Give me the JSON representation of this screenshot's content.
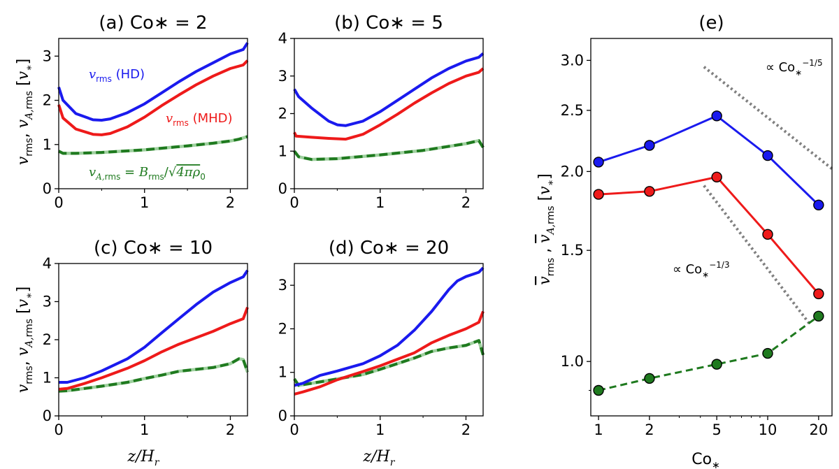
{
  "colors": {
    "hd": "#1a1aee",
    "mhd": "#ee1a1a",
    "va": "#1f7a1f",
    "guide": "#808080"
  },
  "ylabel_left": "v_rms , v_A,rms [v*]",
  "panels": [
    {
      "id": "a",
      "title": "(a) Co∗ = 2",
      "xlim": [
        0,
        2.2
      ],
      "ylim": [
        0,
        3.4
      ],
      "yticks": [
        0,
        1,
        2,
        3
      ],
      "xticks": [
        0,
        1,
        2
      ],
      "annotations": {
        "hd": "v_rms (HD)",
        "mhd": "v_rms (MHD)",
        "va": "v_A,rms = B_rms/√4πρ0"
      },
      "series": {
        "hd": {
          "x": [
            0,
            0.05,
            0.2,
            0.4,
            0.5,
            0.6,
            0.8,
            1.0,
            1.2,
            1.4,
            1.6,
            1.8,
            2.0,
            2.15,
            2.2
          ],
          "y": [
            2.3,
            2.0,
            1.7,
            1.56,
            1.55,
            1.58,
            1.72,
            1.92,
            2.17,
            2.42,
            2.65,
            2.85,
            3.05,
            3.15,
            3.3
          ]
        },
        "mhd": {
          "x": [
            0,
            0.05,
            0.2,
            0.4,
            0.5,
            0.6,
            0.8,
            1.0,
            1.2,
            1.4,
            1.6,
            1.8,
            2.0,
            2.15,
            2.2
          ],
          "y": [
            1.9,
            1.6,
            1.35,
            1.23,
            1.22,
            1.25,
            1.4,
            1.62,
            1.88,
            2.12,
            2.35,
            2.55,
            2.72,
            2.8,
            2.9
          ]
        },
        "va": {
          "x": [
            0,
            0.05,
            0.2,
            0.5,
            1.0,
            1.5,
            1.8,
            2.0,
            2.1,
            2.2
          ],
          "y": [
            0.85,
            0.8,
            0.8,
            0.82,
            0.88,
            0.97,
            1.03,
            1.08,
            1.12,
            1.18
          ]
        }
      }
    },
    {
      "id": "b",
      "title": "(b) Co∗ = 5",
      "xlim": [
        0,
        2.2
      ],
      "ylim": [
        0,
        4
      ],
      "yticks": [
        0,
        1,
        2,
        3,
        4
      ],
      "xticks": [
        0,
        1,
        2
      ],
      "series": {
        "hd": {
          "x": [
            0,
            0.05,
            0.2,
            0.4,
            0.5,
            0.6,
            0.8,
            1.0,
            1.2,
            1.4,
            1.6,
            1.8,
            2.0,
            2.15,
            2.2
          ],
          "y": [
            2.65,
            2.45,
            2.15,
            1.8,
            1.7,
            1.68,
            1.8,
            2.05,
            2.35,
            2.65,
            2.95,
            3.2,
            3.4,
            3.5,
            3.6
          ]
        },
        "mhd": {
          "x": [
            0,
            0.02,
            0.2,
            0.4,
            0.6,
            0.8,
            1.0,
            1.2,
            1.4,
            1.6,
            1.8,
            2.0,
            2.15,
            2.2
          ],
          "y": [
            1.5,
            1.4,
            1.37,
            1.34,
            1.32,
            1.45,
            1.7,
            1.98,
            2.28,
            2.55,
            2.8,
            3.0,
            3.1,
            3.2
          ]
        },
        "va": {
          "x": [
            0,
            0.05,
            0.2,
            0.5,
            1.0,
            1.5,
            2.0,
            2.15,
            2.2
          ],
          "y": [
            1.0,
            0.85,
            0.78,
            0.8,
            0.9,
            1.02,
            1.2,
            1.28,
            1.1
          ]
        }
      }
    },
    {
      "id": "c",
      "title": "(c) Co∗ = 10",
      "xlim": [
        0,
        2.2
      ],
      "ylim": [
        0,
        4
      ],
      "yticks": [
        0,
        1,
        2,
        3,
        4
      ],
      "xticks": [
        0,
        1,
        2
      ],
      "series": {
        "hd": {
          "x": [
            0,
            0.1,
            0.3,
            0.5,
            0.8,
            1.0,
            1.2,
            1.4,
            1.6,
            1.8,
            2.0,
            2.15,
            2.2
          ],
          "y": [
            0.88,
            0.88,
            1.0,
            1.18,
            1.5,
            1.8,
            2.18,
            2.55,
            2.92,
            3.25,
            3.5,
            3.65,
            3.82
          ]
        },
        "mhd": {
          "x": [
            0,
            0.1,
            0.3,
            0.5,
            0.8,
            1.0,
            1.2,
            1.4,
            1.6,
            1.8,
            2.0,
            2.15,
            2.2
          ],
          "y": [
            0.7,
            0.72,
            0.85,
            1.0,
            1.25,
            1.45,
            1.68,
            1.88,
            2.05,
            2.22,
            2.42,
            2.55,
            2.85
          ]
        },
        "va": {
          "x": [
            0,
            0.1,
            0.3,
            0.5,
            0.8,
            1.0,
            1.2,
            1.4,
            1.6,
            1.8,
            2.0,
            2.1,
            2.15,
            2.2
          ],
          "y": [
            0.65,
            0.66,
            0.72,
            0.78,
            0.88,
            0.98,
            1.07,
            1.17,
            1.22,
            1.27,
            1.37,
            1.5,
            1.48,
            1.15
          ]
        }
      }
    },
    {
      "id": "d",
      "title": "(d) Co∗ = 20",
      "xlim": [
        0,
        2.2
      ],
      "ylim": [
        0,
        3.5
      ],
      "yticks": [
        0,
        1,
        2,
        3
      ],
      "xticks": [
        0,
        1,
        2
      ],
      "series": {
        "hd": {
          "x": [
            0,
            0.1,
            0.3,
            0.4,
            0.5,
            0.8,
            1.0,
            1.2,
            1.4,
            1.6,
            1.8,
            1.9,
            2.0,
            2.15,
            2.2
          ],
          "y": [
            0.7,
            0.75,
            0.93,
            0.98,
            1.03,
            1.2,
            1.38,
            1.62,
            1.97,
            2.4,
            2.9,
            3.1,
            3.2,
            3.3,
            3.4
          ]
        },
        "mhd": {
          "x": [
            0,
            0.1,
            0.3,
            0.5,
            0.8,
            1.0,
            1.2,
            1.4,
            1.6,
            1.8,
            2.0,
            2.15,
            2.2
          ],
          "y": [
            0.5,
            0.55,
            0.67,
            0.83,
            1.02,
            1.15,
            1.3,
            1.45,
            1.68,
            1.85,
            2.0,
            2.15,
            2.4
          ]
        },
        "va": {
          "x": [
            0,
            0.05,
            0.3,
            0.5,
            0.8,
            1.0,
            1.2,
            1.4,
            1.6,
            1.8,
            2.0,
            2.15,
            2.2
          ],
          "y": [
            0.85,
            0.7,
            0.78,
            0.85,
            0.95,
            1.07,
            1.2,
            1.33,
            1.48,
            1.56,
            1.62,
            1.73,
            1.4
          ]
        }
      }
    }
  ],
  "panel_e": {
    "title": "(e)",
    "xlabel": "Co∗",
    "ylabel": "v̄_rms , v̄_A,rms [v*]",
    "xticks": [
      1,
      2,
      5,
      10,
      20
    ],
    "yticks": [
      1.0,
      1.5,
      2.0,
      2.5,
      3.0
    ],
    "ylim": [
      0.82,
      3.25
    ],
    "xlim": [
      0.9,
      24
    ],
    "x": [
      1,
      2,
      5,
      10,
      20
    ],
    "hd": [
      2.07,
      2.2,
      2.45,
      2.12,
      1.77
    ],
    "mhd": [
      1.84,
      1.86,
      1.96,
      1.59,
      1.28
    ],
    "va": [
      0.9,
      0.94,
      0.99,
      1.03,
      1.18
    ],
    "guide_upper": {
      "label": "∝ Co∗",
      "exponent": "−1/5",
      "from": [
        4.2,
        2.93
      ],
      "to": [
        24,
        2.02
      ]
    },
    "guide_lower": {
      "label": "∝ Co∗",
      "exponent": "−1/3",
      "from": [
        4.2,
        1.9
      ],
      "to": [
        18,
        1.14
      ]
    }
  },
  "xlabel_bottom": "z/H_r"
}
